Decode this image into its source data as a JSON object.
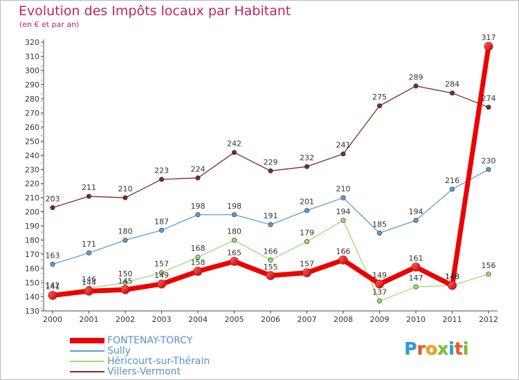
{
  "header": {
    "title": "Evolution des Impôts locaux par Habitant",
    "subtitle": "(en € et par an)"
  },
  "brand": {
    "letters": [
      "P",
      "r",
      "o",
      "x",
      "i",
      "t",
      "i"
    ],
    "colors": [
      "#2e9bd8",
      "#e85a1a",
      "#f0a01a",
      "#7cbf2e",
      "#2e9bd8",
      "#e85a1a",
      "#7cbf2e"
    ]
  },
  "chart_data": {
    "type": "line",
    "title": "Evolution des Impôts locaux par Habitant",
    "subtitle": "(en € et par an)",
    "xlabel": "",
    "ylabel": "",
    "x": [
      "2000",
      "2001",
      "2002",
      "2003",
      "2004",
      "2005",
      "2006",
      "2007",
      "2008",
      "2009",
      "2010",
      "2011",
      "2012"
    ],
    "ylim": [
      130,
      320
    ],
    "yticks": [
      130,
      140,
      150,
      160,
      170,
      180,
      190,
      200,
      210,
      220,
      230,
      240,
      250,
      260,
      270,
      280,
      290,
      300,
      310,
      320
    ],
    "grid": false,
    "legend_position": "bottom-left",
    "series": [
      {
        "name": "FONTENAY-TORCY",
        "color": "#ee0000",
        "values": [
          141,
          144,
          145,
          149,
          158,
          165,
          155,
          157,
          166,
          149,
          161,
          148,
          317
        ],
        "labels": [
          "141",
          "144",
          "145",
          "149",
          "158",
          "165",
          "155",
          "157",
          "166",
          "149",
          "161",
          "148",
          "317"
        ]
      },
      {
        "name": "Sully",
        "color": "#5b9bd5",
        "values": [
          163,
          171,
          180,
          187,
          198,
          198,
          191,
          201,
          210,
          185,
          194,
          216,
          230
        ],
        "labels": [
          "163",
          "171",
          "180",
          "187",
          "198",
          "198",
          "191",
          "201",
          "210",
          "185",
          "194",
          "216",
          "230"
        ]
      },
      {
        "name": "Héricourt-sur-Thérain",
        "color": "#99e06b",
        "values": [
          142,
          146,
          150,
          157,
          168,
          180,
          166,
          179,
          194,
          137,
          147,
          148,
          156
        ],
        "labels": [
          "142",
          "146",
          "150",
          "157",
          "168",
          "180",
          "166",
          "179",
          "194",
          "137",
          "147",
          "148",
          "156"
        ]
      },
      {
        "name": "Villers-Vermont",
        "color": "#7b2a2a",
        "values": [
          203,
          211,
          210,
          223,
          224,
          242,
          229,
          232,
          241,
          275,
          289,
          284,
          274
        ],
        "labels": [
          "203",
          "211",
          "210",
          "223",
          "224",
          "242",
          "229",
          "232",
          "241",
          "275",
          "289",
          "284",
          "274"
        ]
      }
    ]
  }
}
